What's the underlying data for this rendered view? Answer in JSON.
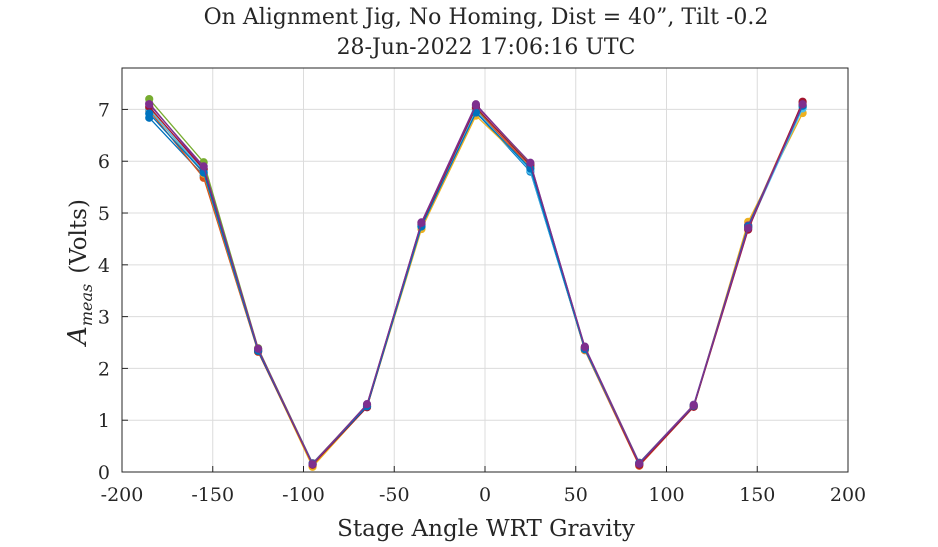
{
  "chart_data": {
    "type": "line",
    "title": "On Alignment Jig, No Homing, Dist = 40”, Tilt -0.2",
    "subtitle": "28-Jun-2022 17:06:16 UTC",
    "xlabel": "Stage Angle WRT Gravity",
    "ylabel_main": "A",
    "ylabel_sub": "meas",
    "ylabel_units": "(Volts)",
    "xlim": [
      -200,
      200
    ],
    "ylim": [
      0,
      7.8
    ],
    "xticks": [
      -200,
      -150,
      -100,
      -50,
      0,
      50,
      100,
      150,
      200
    ],
    "xtick_labels": [
      "-200",
      "-150",
      "-100",
      "-50",
      "0",
      "50",
      "100",
      "150",
      "200"
    ],
    "yticks": [
      0,
      1,
      2,
      3,
      4,
      5,
      6,
      7
    ],
    "ytick_labels": [
      "0",
      "1",
      "2",
      "3",
      "4",
      "5",
      "6",
      "7"
    ],
    "grid": true,
    "x": [
      -185,
      -155,
      -125,
      -95,
      -65,
      -35,
      -5,
      25,
      55,
      85,
      115,
      145,
      175
    ],
    "series": [
      {
        "color": "#0072BD",
        "values": [
          6.84,
          5.72,
          2.35,
          0.14,
          1.27,
          4.73,
          6.95,
          5.8,
          2.37,
          0.15,
          1.27,
          4.73,
          7.04
        ]
      },
      {
        "color": "#D95319",
        "values": [
          6.98,
          5.68,
          2.32,
          0.13,
          1.26,
          4.75,
          7.0,
          5.88,
          2.35,
          0.12,
          1.26,
          4.76,
          7.13
        ]
      },
      {
        "color": "#EDB120",
        "values": [
          7.02,
          5.76,
          2.34,
          0.1,
          1.26,
          4.69,
          6.88,
          5.88,
          2.36,
          0.16,
          1.27,
          4.83,
          6.93
        ]
      },
      {
        "color": "#7E2F8E",
        "values": [
          7.12,
          5.86,
          2.37,
          0.17,
          1.29,
          4.82,
          7.1,
          5.95,
          2.42,
          0.18,
          1.3,
          4.76,
          7.08
        ]
      },
      {
        "color": "#77AC30",
        "values": [
          7.2,
          5.98,
          2.39,
          0.16,
          1.3,
          4.8,
          7.02,
          5.96,
          2.4,
          0.17,
          1.28,
          4.72,
          7.05
        ]
      },
      {
        "color": "#4DBEEE",
        "values": [
          7.0,
          5.8,
          2.36,
          0.15,
          1.28,
          4.76,
          6.98,
          5.82,
          2.38,
          0.16,
          1.29,
          4.7,
          7.02
        ]
      },
      {
        "color": "#A2142F",
        "values": [
          7.05,
          5.84,
          2.33,
          0.14,
          1.25,
          4.78,
          7.04,
          5.92,
          2.39,
          0.14,
          1.26,
          4.68,
          7.15
        ]
      },
      {
        "color": "#0072BD",
        "values": [
          6.92,
          5.78,
          2.34,
          0.16,
          1.27,
          4.74,
          6.94,
          5.86,
          2.37,
          0.17,
          1.28,
          4.74,
          7.07
        ]
      },
      {
        "color": "#7E2F8E",
        "values": [
          7.1,
          5.9,
          2.38,
          0.15,
          1.31,
          4.81,
          7.08,
          5.97,
          2.41,
          0.16,
          1.29,
          4.71,
          7.1
        ]
      }
    ]
  }
}
